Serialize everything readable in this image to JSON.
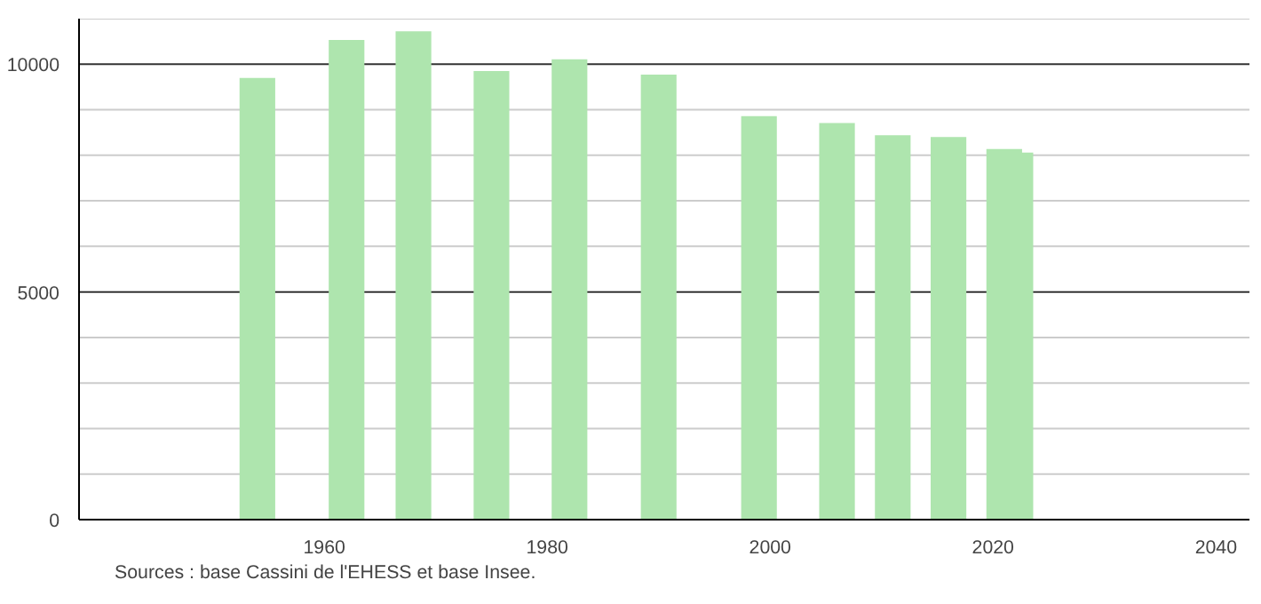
{
  "chart_data": {
    "type": "bar",
    "x": [
      1954,
      1962,
      1968,
      1975,
      1982,
      1990,
      1999,
      2006,
      2011,
      2016,
      2021,
      2022
    ],
    "values": [
      9700,
      10530,
      10720,
      9850,
      10110,
      9770,
      8860,
      8710,
      8440,
      8400,
      8140,
      8060
    ],
    "color": "#aee5ae",
    "xlim": [
      1938,
      2043
    ],
    "xticks": [
      1960,
      1980,
      2000,
      2020,
      2040
    ],
    "ylim": [
      0,
      11000
    ],
    "yticks": [
      0,
      {
        "value": 1000,
        "label": null
      },
      {
        "value": 2000,
        "label": null
      },
      {
        "value": 3000,
        "label": null
      },
      {
        "value": 4000,
        "label": null
      },
      5000,
      {
        "value": 6000,
        "label": null
      },
      {
        "value": 7000,
        "label": null
      },
      {
        "value": 8000,
        "label": null
      },
      {
        "value": 9000,
        "label": null
      },
      10000,
      {
        "value": 11000,
        "label": null
      }
    ],
    "grid": "y",
    "annotations": [
      "Sources : base Cassini de l'EHESS et base Insee."
    ]
  }
}
